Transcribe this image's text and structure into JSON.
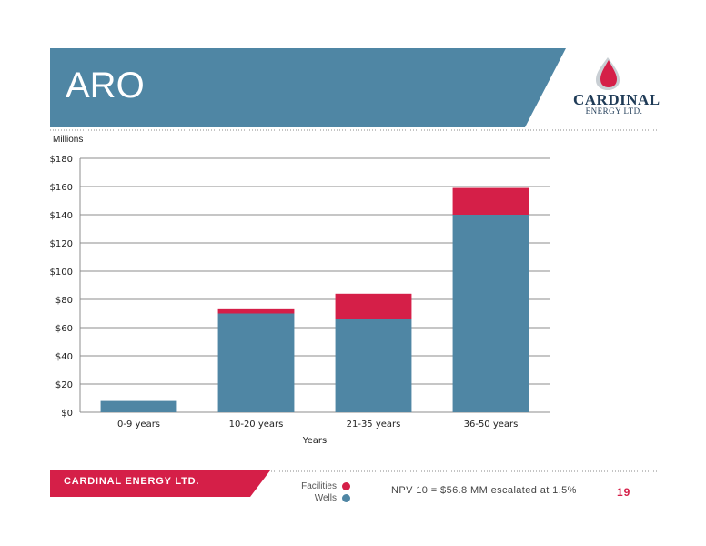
{
  "slide": {
    "title": "ARO",
    "units_label": "Millions",
    "footer_company": "CARDINAL ENERGY LTD.",
    "npv_note": "NPV 10 = $56.8 MM escalated at 1.5%",
    "page_number": "19"
  },
  "brand": {
    "name": "CARDINAL",
    "subtitle": "ENERGY LTD.",
    "accent_color": "#d51f48",
    "banner_color": "#4f86a4"
  },
  "legend": [
    {
      "label": "Facilities",
      "color": "#d51f48"
    },
    {
      "label": "Wells",
      "color": "#4f86a4"
    }
  ],
  "chart_data": {
    "type": "bar",
    "stacked": true,
    "categories": [
      "0-9 years",
      "10-20 years",
      "21-35 years",
      "36-50 years"
    ],
    "series": [
      {
        "name": "Wells",
        "color": "#4f86a4",
        "values": [
          8,
          70,
          66,
          140
        ]
      },
      {
        "name": "Facilities",
        "color": "#d51f48",
        "values": [
          0,
          3,
          18,
          19
        ]
      }
    ],
    "xlabel": "Years",
    "ylabel": "",
    "ylim": [
      0,
      180
    ],
    "yticks": [
      0,
      20,
      40,
      60,
      80,
      100,
      120,
      140,
      160,
      180
    ],
    "ytick_labels": [
      "$0",
      "$20",
      "$40",
      "$60",
      "$80",
      "$100",
      "$120",
      "$140",
      "$160",
      "$180"
    ],
    "grid": true
  }
}
